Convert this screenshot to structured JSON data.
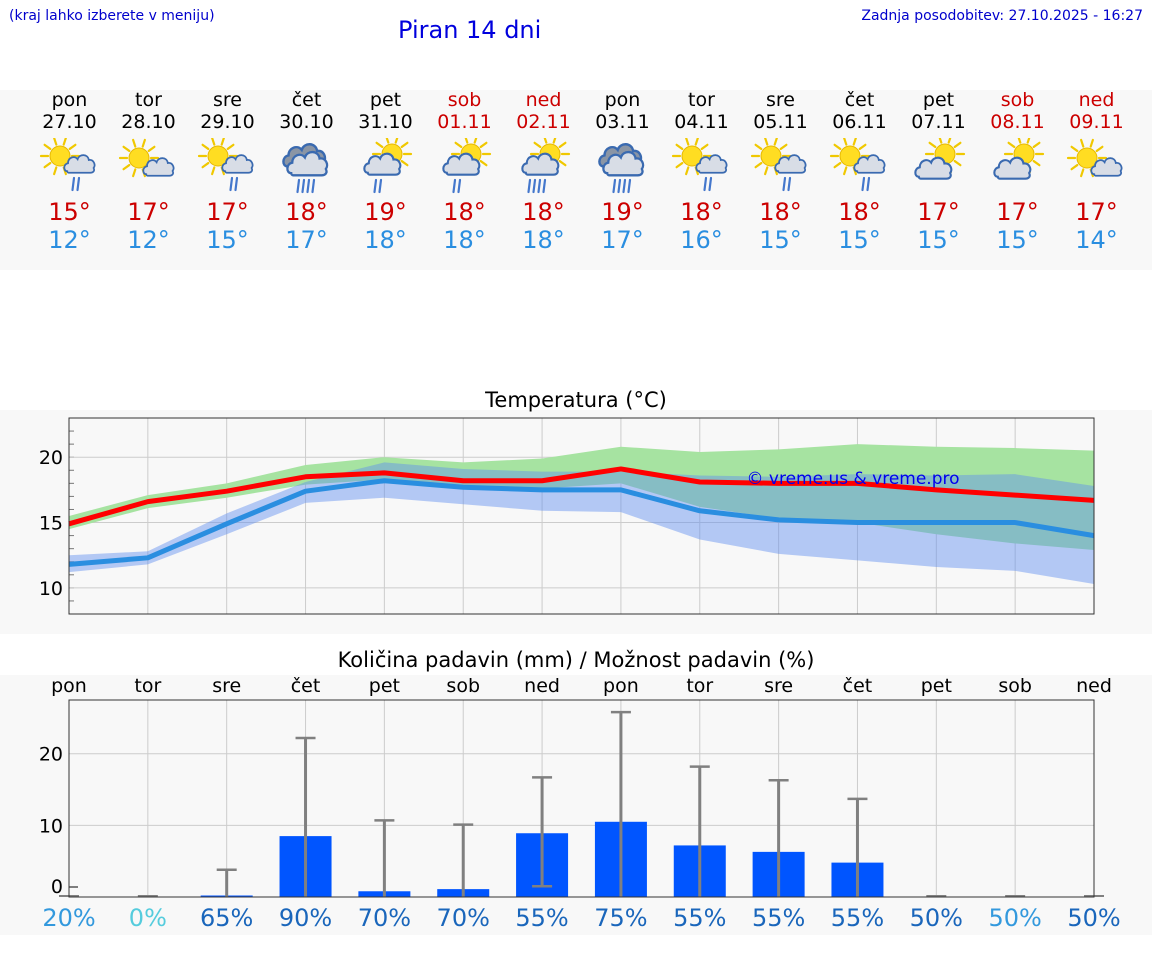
{
  "header": {
    "location_note": "(kraj lahko izberete v meniju)",
    "title": "Piran 14 dni",
    "updated": "Zadnja posodobitev: 27.10.2025 - 16:27"
  },
  "days": [
    {
      "name": "pon",
      "date": "27.10",
      "icon": "sun-cloud-rain-icon",
      "max": "15°",
      "min": "12°",
      "weekend": false
    },
    {
      "name": "tor",
      "date": "28.10",
      "icon": "sun-cloud-icon",
      "max": "17°",
      "min": "12°",
      "weekend": false
    },
    {
      "name": "sre",
      "date": "29.10",
      "icon": "sun-cloud-rain-icon",
      "max": "17°",
      "min": "15°",
      "weekend": false
    },
    {
      "name": "čet",
      "date": "30.10",
      "icon": "cloud-rain-icon",
      "max": "18°",
      "min": "17°",
      "weekend": false
    },
    {
      "name": "pet",
      "date": "31.10",
      "icon": "cloud-sun-rain-icon",
      "max": "19°",
      "min": "18°",
      "weekend": false
    },
    {
      "name": "sob",
      "date": "01.11",
      "icon": "cloud-sun-rain-icon",
      "max": "18°",
      "min": "18°",
      "weekend": true
    },
    {
      "name": "ned",
      "date": "02.11",
      "icon": "cloud-sun-heavy-rain-icon",
      "max": "18°",
      "min": "18°",
      "weekend": true
    },
    {
      "name": "pon",
      "date": "03.11",
      "icon": "cloud-rain-icon",
      "max": "19°",
      "min": "17°",
      "weekend": false
    },
    {
      "name": "tor",
      "date": "04.11",
      "icon": "sun-cloud-rain-icon",
      "max": "18°",
      "min": "16°",
      "weekend": false
    },
    {
      "name": "sre",
      "date": "05.11",
      "icon": "sun-cloud-rain-icon",
      "max": "18°",
      "min": "15°",
      "weekend": false
    },
    {
      "name": "čet",
      "date": "06.11",
      "icon": "sun-cloud-rain-icon",
      "max": "18°",
      "min": "15°",
      "weekend": false
    },
    {
      "name": "pet",
      "date": "07.11",
      "icon": "cloud-sun-icon",
      "max": "17°",
      "min": "15°",
      "weekend": false
    },
    {
      "name": "sob",
      "date": "08.11",
      "icon": "cloud-sun-icon",
      "max": "17°",
      "min": "15°",
      "weekend": true
    },
    {
      "name": "ned",
      "date": "09.11",
      "icon": "sun-cloud-icon",
      "max": "17°",
      "min": "14°",
      "weekend": true
    }
  ],
  "colors": {
    "max": "#ff0000",
    "min": "#2a8ee0",
    "max_band": "#a6e3a1",
    "min_band": "#a9c4f5",
    "overlap": "#7ecba8",
    "bar": "#0055ff",
    "whisker": "#808080"
  },
  "chart_data": [
    {
      "type": "line",
      "title": "Temperatura (°C)",
      "watermark": "© vreme.us & vreme.pro",
      "ylim": [
        8,
        23
      ],
      "yticks": [
        10,
        15,
        20
      ],
      "x": [
        0,
        1,
        2,
        3,
        4,
        5,
        6,
        7,
        8,
        9,
        10,
        11,
        12,
        13
      ],
      "series": [
        {
          "name": "max",
          "values": [
            14.9,
            16.6,
            17.4,
            18.5,
            18.8,
            18.2,
            18.2,
            19.1,
            18.1,
            18.0,
            18.0,
            17.5,
            17.1,
            16.7
          ]
        },
        {
          "name": "min",
          "values": [
            11.8,
            12.3,
            14.9,
            17.4,
            18.2,
            17.7,
            17.5,
            17.5,
            15.9,
            15.2,
            15.0,
            15.0,
            15.0,
            14.0
          ]
        }
      ],
      "bands": [
        {
          "name": "max_range",
          "low": [
            14.5,
            16.1,
            16.9,
            17.9,
            18.3,
            17.8,
            17.6,
            18.0,
            16.2,
            15.3,
            15.0,
            14.1,
            13.4,
            12.9
          ],
          "high": [
            15.5,
            17.1,
            18.0,
            19.4,
            20.0,
            19.6,
            19.9,
            20.8,
            20.4,
            20.6,
            21.0,
            20.8,
            20.7,
            20.5
          ]
        },
        {
          "name": "min_range",
          "low": [
            11.2,
            11.8,
            14.1,
            16.5,
            16.9,
            16.4,
            15.9,
            15.8,
            13.7,
            12.6,
            12.1,
            11.6,
            11.3,
            10.3
          ],
          "high": [
            12.5,
            12.8,
            15.7,
            18.1,
            19.6,
            19.1,
            18.9,
            18.9,
            18.6,
            18.5,
            18.7,
            18.6,
            18.7,
            17.8
          ]
        }
      ]
    },
    {
      "type": "bar",
      "title": "Količina padavin (mm) / Možnost padavin (%)",
      "categories": [
        "pon",
        "tor",
        "sre",
        "čet",
        "pet",
        "sob",
        "ned",
        "pon",
        "tor",
        "sre",
        "čet",
        "pet",
        "sob",
        "ned"
      ],
      "values": [
        0,
        0,
        0.1,
        8.5,
        0.8,
        1.1,
        8.9,
        10.5,
        7.2,
        6.3,
        4.8,
        0,
        0,
        0
      ],
      "error_high": [
        0,
        0,
        3.8,
        22.2,
        10.7,
        10.1,
        16.7,
        25.8,
        18.2,
        16.3,
        13.7,
        0,
        0,
        0
      ],
      "error_low": [
        0,
        0,
        0,
        0,
        0,
        0,
        1.5,
        0,
        0,
        0,
        0,
        0,
        0,
        0
      ],
      "probabilities": [
        "20%",
        "0%",
        "65%",
        "90%",
        "70%",
        "70%",
        "55%",
        "75%",
        "55%",
        "55%",
        "55%",
        "50%",
        "50%",
        "50%"
      ],
      "prob_colors": [
        "#3399dd",
        "#55ccdd",
        "#1a66bb",
        "#1a66bb",
        "#1a66bb",
        "#1a66bb",
        "#1a66bb",
        "#1a66bb",
        "#1a66bb",
        "#1a66bb",
        "#1a66bb",
        "#1a66bb",
        "#3399dd",
        "#1a66bb"
      ],
      "ylim": [
        0,
        27.5
      ],
      "yticks": [
        0,
        10,
        20
      ]
    }
  ]
}
